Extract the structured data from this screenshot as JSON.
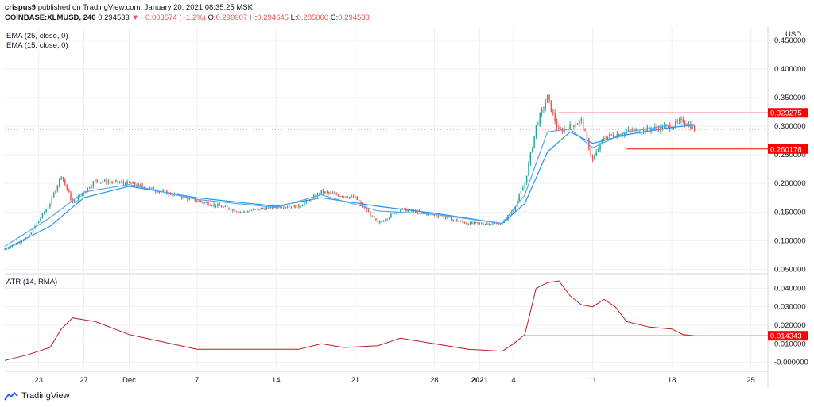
{
  "header": {
    "user": "crispus9",
    "published": "published on TradingView.com, January 20, 2021 08:35:25 MSK",
    "symbol": "COINBASE:XLMUSD, 240",
    "last": "0.294533",
    "change": "▼ −0.003574 (−1.2%)",
    "o_label": "O:",
    "o_value": "0.290907",
    "h_label": "H:",
    "h_value": "0.294645",
    "l_label": "L:",
    "l_value": "0.285000",
    "c_label": "C:",
    "c_value": "0.294533"
  },
  "legend": {
    "ema25": "EMA (25, close, 0)",
    "ema15": "EMA (15, close, 0)",
    "atr": "ATR (14, RMA)"
  },
  "currency": "USD",
  "brand": "TradingView",
  "colors": {
    "up": "#26a69a",
    "down": "#ef5350",
    "ema": "#2196f3",
    "atr": "#b71c1c",
    "level": "#ff0000",
    "grid": "#eef0f3",
    "axis": "#131722"
  },
  "chart_data": [
    {
      "type": "candlestick",
      "title": "COINBASE:XLMUSD, 240",
      "ylim": [
        0.045,
        0.465
      ],
      "y_ticks": [
        "0.450000",
        "0.400000",
        "0.350000",
        "0.300000",
        "0.250000",
        "0.200000",
        "0.150000",
        "0.100000",
        "0.050000"
      ],
      "x_ticks": [
        "23",
        "27",
        "Dec",
        "7",
        "14",
        "21",
        "28",
        "2021",
        "4",
        "11",
        "18",
        "25"
      ],
      "key_points": [
        {
          "date": "2020-11-20",
          "price": 0.085
        },
        {
          "date": "2020-11-22",
          "price": 0.105
        },
        {
          "date": "2020-11-24",
          "price": 0.165
        },
        {
          "date": "2020-11-25",
          "price": 0.215
        },
        {
          "date": "2020-11-26",
          "price": 0.165
        },
        {
          "date": "2020-11-28",
          "price": 0.205
        },
        {
          "date": "2020-12-01",
          "price": 0.2
        },
        {
          "date": "2020-12-04",
          "price": 0.185
        },
        {
          "date": "2020-12-07",
          "price": 0.17
        },
        {
          "date": "2020-12-11",
          "price": 0.15
        },
        {
          "date": "2020-12-14",
          "price": 0.16
        },
        {
          "date": "2020-12-16",
          "price": 0.16
        },
        {
          "date": "2020-12-18",
          "price": 0.185
        },
        {
          "date": "2020-12-21",
          "price": 0.175
        },
        {
          "date": "2020-12-23",
          "price": 0.13
        },
        {
          "date": "2020-12-25",
          "price": 0.155
        },
        {
          "date": "2020-12-28",
          "price": 0.145
        },
        {
          "date": "2020-12-31",
          "price": 0.13
        },
        {
          "date": "2021-01-03",
          "price": 0.13
        },
        {
          "date": "2021-01-04",
          "price": 0.155
        },
        {
          "date": "2021-01-05",
          "price": 0.2
        },
        {
          "date": "2021-01-06",
          "price": 0.3
        },
        {
          "date": "2021-01-07",
          "price": 0.35
        },
        {
          "date": "2021-01-08",
          "price": 0.29
        },
        {
          "date": "2021-01-09",
          "price": 0.3
        },
        {
          "date": "2021-01-10",
          "price": 0.31
        },
        {
          "date": "2021-01-11",
          "price": 0.24
        },
        {
          "date": "2021-01-12",
          "price": 0.28
        },
        {
          "date": "2021-01-14",
          "price": 0.29
        },
        {
          "date": "2021-01-16",
          "price": 0.295
        },
        {
          "date": "2021-01-18",
          "price": 0.3
        },
        {
          "date": "2021-01-19",
          "price": 0.31
        },
        {
          "date": "2021-01-20",
          "price": 0.294533
        }
      ],
      "ema25": [
        {
          "date": "2020-11-20",
          "price": 0.085
        },
        {
          "date": "2020-11-24",
          "price": 0.125
        },
        {
          "date": "2020-11-27",
          "price": 0.175
        },
        {
          "date": "2020-12-01",
          "price": 0.195
        },
        {
          "date": "2020-12-07",
          "price": 0.175
        },
        {
          "date": "2020-12-14",
          "price": 0.16
        },
        {
          "date": "2020-12-18",
          "price": 0.175
        },
        {
          "date": "2020-12-23",
          "price": 0.16
        },
        {
          "date": "2020-12-28",
          "price": 0.148
        },
        {
          "date": "2021-01-03",
          "price": 0.13
        },
        {
          "date": "2021-01-05",
          "price": 0.165
        },
        {
          "date": "2021-01-07",
          "price": 0.255
        },
        {
          "date": "2021-01-09",
          "price": 0.29
        },
        {
          "date": "2021-01-11",
          "price": 0.27
        },
        {
          "date": "2021-01-14",
          "price": 0.285
        },
        {
          "date": "2021-01-18",
          "price": 0.298
        },
        {
          "date": "2021-01-20",
          "price": 0.302
        }
      ],
      "ema15": [
        {
          "date": "2020-11-20",
          "price": 0.09
        },
        {
          "date": "2020-11-24",
          "price": 0.14
        },
        {
          "date": "2020-11-27",
          "price": 0.185
        },
        {
          "date": "2020-12-01",
          "price": 0.198
        },
        {
          "date": "2020-12-07",
          "price": 0.172
        },
        {
          "date": "2020-12-14",
          "price": 0.158
        },
        {
          "date": "2020-12-18",
          "price": 0.18
        },
        {
          "date": "2020-12-23",
          "price": 0.152
        },
        {
          "date": "2020-12-28",
          "price": 0.146
        },
        {
          "date": "2021-01-03",
          "price": 0.13
        },
        {
          "date": "2021-01-05",
          "price": 0.18
        },
        {
          "date": "2021-01-07",
          "price": 0.29
        },
        {
          "date": "2021-01-09",
          "price": 0.295
        },
        {
          "date": "2021-01-11",
          "price": 0.262
        },
        {
          "date": "2021-01-14",
          "price": 0.29
        },
        {
          "date": "2021-01-18",
          "price": 0.302
        },
        {
          "date": "2021-01-20",
          "price": 0.303
        }
      ],
      "levels": [
        {
          "label": "0.323275",
          "value": 0.323275,
          "from": "2021-01-08",
          "to": "2021-01-23"
        },
        {
          "label": "0.260178",
          "value": 0.260178,
          "from": "2021-01-14",
          "to": "2021-01-23"
        }
      ],
      "last_price": 0.294533
    },
    {
      "type": "line",
      "title": "ATR (14, RMA)",
      "ylim": [
        -0.004,
        0.047
      ],
      "y_ticks": [
        "0.040000",
        "0.030000",
        "0.020000",
        "0.010000",
        "-0.000000"
      ],
      "series": [
        {
          "name": "ATR (14, RMA)",
          "points": [
            {
              "date": "2020-11-20",
              "value": 0.001
            },
            {
              "date": "2020-11-22",
              "value": 0.004
            },
            {
              "date": "2020-11-24",
              "value": 0.008
            },
            {
              "date": "2020-11-25",
              "value": 0.018
            },
            {
              "date": "2020-11-26",
              "value": 0.024
            },
            {
              "date": "2020-11-28",
              "value": 0.022
            },
            {
              "date": "2020-12-01",
              "value": 0.015
            },
            {
              "date": "2020-12-04",
              "value": 0.011
            },
            {
              "date": "2020-12-07",
              "value": 0.007
            },
            {
              "date": "2020-12-10",
              "value": 0.007
            },
            {
              "date": "2020-12-14",
              "value": 0.007
            },
            {
              "date": "2020-12-16",
              "value": 0.007
            },
            {
              "date": "2020-12-18",
              "value": 0.01
            },
            {
              "date": "2020-12-20",
              "value": 0.008
            },
            {
              "date": "2020-12-23",
              "value": 0.009
            },
            {
              "date": "2020-12-25",
              "value": 0.013
            },
            {
              "date": "2020-12-28",
              "value": 0.01
            },
            {
              "date": "2020-12-31",
              "value": 0.007
            },
            {
              "date": "2021-01-03",
              "value": 0.006
            },
            {
              "date": "2021-01-04",
              "value": 0.01
            },
            {
              "date": "2021-01-05",
              "value": 0.015
            },
            {
              "date": "2021-01-06",
              "value": 0.04
            },
            {
              "date": "2021-01-07",
              "value": 0.043
            },
            {
              "date": "2021-01-08",
              "value": 0.044
            },
            {
              "date": "2021-01-09",
              "value": 0.036
            },
            {
              "date": "2021-01-10",
              "value": 0.031
            },
            {
              "date": "2021-01-11",
              "value": 0.03
            },
            {
              "date": "2021-01-12",
              "value": 0.034
            },
            {
              "date": "2021-01-13",
              "value": 0.03
            },
            {
              "date": "2021-01-14",
              "value": 0.022
            },
            {
              "date": "2021-01-16",
              "value": 0.019
            },
            {
              "date": "2021-01-18",
              "value": 0.018
            },
            {
              "date": "2021-01-19",
              "value": 0.015
            },
            {
              "date": "2021-01-20",
              "value": 0.014343
            }
          ]
        }
      ],
      "levels": [
        {
          "label": "0.014343",
          "value": 0.014343,
          "from": "2021-01-05",
          "to": "2021-01-23"
        }
      ]
    }
  ]
}
